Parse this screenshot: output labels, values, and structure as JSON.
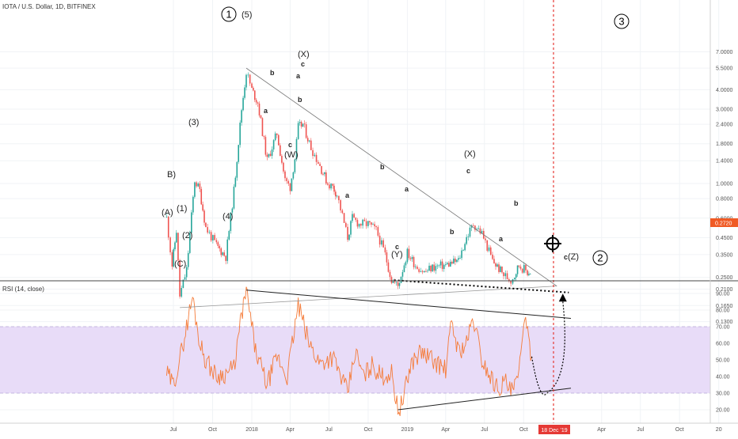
{
  "header": {
    "symbol_title": "IOTA / U.S. Dollar, 1D, BITFINEX",
    "rsi_title": "RSI (14, close)"
  },
  "price_axis": {
    "ticks": [
      "7.0000",
      "5.5000",
      "4.0000",
      "3.0000",
      "2.4000",
      "1.8000",
      "1.4000",
      "1.0000",
      "0.8000",
      "0.6000",
      "0.4500",
      "0.3500",
      "0.2500",
      "0.2100",
      "0.1650",
      "0.1300"
    ],
    "current_price": "0.2720",
    "current_price_color": "#f05a24"
  },
  "rsi_axis": {
    "ticks": [
      "90.00",
      "80.00",
      "70.00",
      "60.00",
      "50.00",
      "40.00",
      "30.00",
      "20.00"
    ]
  },
  "time_axis": {
    "labels": [
      "Jul",
      "Oct",
      "2018",
      "Apr",
      "Jul",
      "Oct",
      "2019",
      "Apr",
      "Jul",
      "Oct",
      "Apr",
      "Jul",
      "Oct",
      "20"
    ],
    "highlight_label": "18 Dec '19",
    "highlight_color": "#e53935"
  },
  "colors": {
    "up": "#26a69a",
    "down": "#ef5350",
    "rsi_line": "#f57c3a",
    "rsi_band": "#e1d4f7",
    "target_line": "#e53935"
  },
  "annotations": {
    "wave_labels": [
      "(A)",
      "B)",
      "(1)",
      "(2)",
      "(C)",
      "(3)",
      "(4)",
      "(5)",
      "(X)",
      "(W)",
      "(X)",
      "(Y)",
      "(Z)",
      "a",
      "b",
      "c",
      "a",
      "b",
      "c",
      "a",
      "b",
      "c",
      "a",
      "b",
      "c",
      "a",
      "b",
      "c"
    ],
    "circled_numbers": [
      "1",
      "3",
      "2"
    ]
  },
  "chart_data": [
    {
      "type": "candlestick",
      "title": "IOTA / U.S. Dollar, 1D, BITFINEX",
      "scale": "log",
      "ylim": [
        0.12,
        7.0
      ],
      "yticks": [
        7.0,
        5.5,
        4.0,
        3.0,
        2.4,
        1.8,
        1.4,
        1.0,
        0.8,
        0.6,
        0.45,
        0.35,
        0.25,
        0.21,
        0.165,
        0.13
      ],
      "xticks": [
        "Jul",
        "Oct",
        "2018",
        "Apr",
        "Jul",
        "Oct",
        "2019",
        "Apr",
        "Jul",
        "Oct",
        "Apr",
        "Jul",
        "Oct",
        "20"
      ],
      "approx_close_path": {
        "dates": [
          "2017-06-15",
          "2017-06-28",
          "2017-07-08",
          "2017-07-16",
          "2017-08-01",
          "2017-08-20",
          "2017-09-01",
          "2017-09-15",
          "2017-10-10",
          "2017-11-01",
          "2017-11-20",
          "2017-12-08",
          "2017-12-19",
          "2018-01-01",
          "2018-01-15",
          "2018-02-06",
          "2018-03-01",
          "2018-03-20",
          "2018-04-01",
          "2018-04-12",
          "2018-04-20",
          "2018-05-01",
          "2018-05-20",
          "2018-06-10",
          "2018-06-28",
          "2018-07-10",
          "2018-07-20",
          "2018-08-14",
          "2018-08-25",
          "2018-09-10",
          "2018-10-01",
          "2018-10-20",
          "2018-11-10",
          "2018-11-25",
          "2018-12-10",
          "2019-01-01",
          "2019-01-20",
          "2019-02-10",
          "2019-03-01",
          "2019-04-01",
          "2019-05-01",
          "2019-05-20",
          "2019-06-05",
          "2019-06-25",
          "2019-07-20",
          "2019-08-15",
          "2019-09-01",
          "2019-09-10",
          "2019-09-20",
          "2019-10-10",
          "2019-10-20"
        ],
        "close": [
          0.6,
          0.3,
          0.5,
          0.19,
          0.28,
          1.05,
          0.9,
          0.52,
          0.4,
          0.34,
          0.9,
          3.0,
          5.2,
          4.0,
          3.3,
          1.4,
          2.1,
          1.05,
          0.95,
          1.45,
          2.3,
          2.4,
          1.7,
          1.3,
          1.0,
          0.95,
          0.85,
          0.45,
          0.6,
          0.55,
          0.55,
          0.5,
          0.35,
          0.24,
          0.22,
          0.36,
          0.3,
          0.27,
          0.29,
          0.3,
          0.32,
          0.45,
          0.55,
          0.48,
          0.32,
          0.26,
          0.24,
          0.26,
          0.3,
          0.27,
          0.272
        ]
      },
      "trendlines": [
        {
          "name": "upper resistance",
          "from": [
            "2017-12-19",
            5.5
          ],
          "to": [
            "2019-12-18",
            0.22
          ]
        },
        {
          "name": "lower support",
          "from": [
            "2017-07-16",
            0.16
          ],
          "to": [
            "2019-12-18",
            0.22
          ]
        },
        {
          "name": "wave c projection",
          "from": [
            "2018-12-01",
            0.24
          ],
          "to": [
            "2020-01-15",
            0.2
          ]
        }
      ],
      "target_date": "18 Dec '19",
      "last_price": 0.272
    },
    {
      "type": "line",
      "title": "RSI (14, close)",
      "ylim": [
        15,
        95
      ],
      "yticks": [
        90,
        80,
        70,
        60,
        50,
        40,
        30,
        20
      ],
      "band": [
        30,
        70
      ],
      "approx_series": {
        "dates": [
          "2017-06-15",
          "2017-07-01",
          "2017-07-20",
          "2017-08-15",
          "2017-09-01",
          "2017-09-15",
          "2017-10-10",
          "2017-11-01",
          "2017-11-20",
          "2017-12-10",
          "2017-12-19",
          "2018-01-10",
          "2018-02-06",
          "2018-03-01",
          "2018-03-25",
          "2018-04-20",
          "2018-05-15",
          "2018-06-10",
          "2018-07-10",
          "2018-08-14",
          "2018-09-01",
          "2018-09-20",
          "2018-10-10",
          "2018-11-01",
          "2018-11-25",
          "2018-12-10",
          "2018-12-20",
          "2019-01-10",
          "2019-02-01",
          "2019-03-01",
          "2019-04-01",
          "2019-04-15",
          "2019-05-01",
          "2019-05-20",
          "2019-06-05",
          "2019-06-25",
          "2019-07-15",
          "2019-08-01",
          "2019-08-20",
          "2019-09-01",
          "2019-09-10",
          "2019-09-20",
          "2019-10-01",
          "2019-10-15",
          "2019-10-20"
        ],
        "rsi": [
          42,
          35,
          55,
          88,
          60,
          50,
          40,
          42,
          45,
          80,
          92,
          55,
          35,
          52,
          40,
          83,
          60,
          48,
          52,
          30,
          55,
          40,
          47,
          40,
          42,
          20,
          24,
          48,
          55,
          50,
          44,
          73,
          55,
          60,
          75,
          50,
          40,
          33,
          37,
          30,
          34,
          40,
          76,
          58,
          52
        ]
      },
      "trendlines": [
        {
          "name": "RSI resistance",
          "from": [
            "2017-12-19",
            92
          ],
          "to": [
            "2020-01-20",
            75
          ]
        },
        {
          "name": "RSI support",
          "from": [
            "2018-12-10",
            20
          ],
          "to": [
            "2020-01-20",
            33
          ]
        }
      ],
      "projection": {
        "name": "projected RSI path",
        "dates": [
          "2019-10-20",
          "2019-11-25",
          "2020-01-01"
        ],
        "rsi": [
          52,
          30,
          88
        ]
      }
    }
  ]
}
